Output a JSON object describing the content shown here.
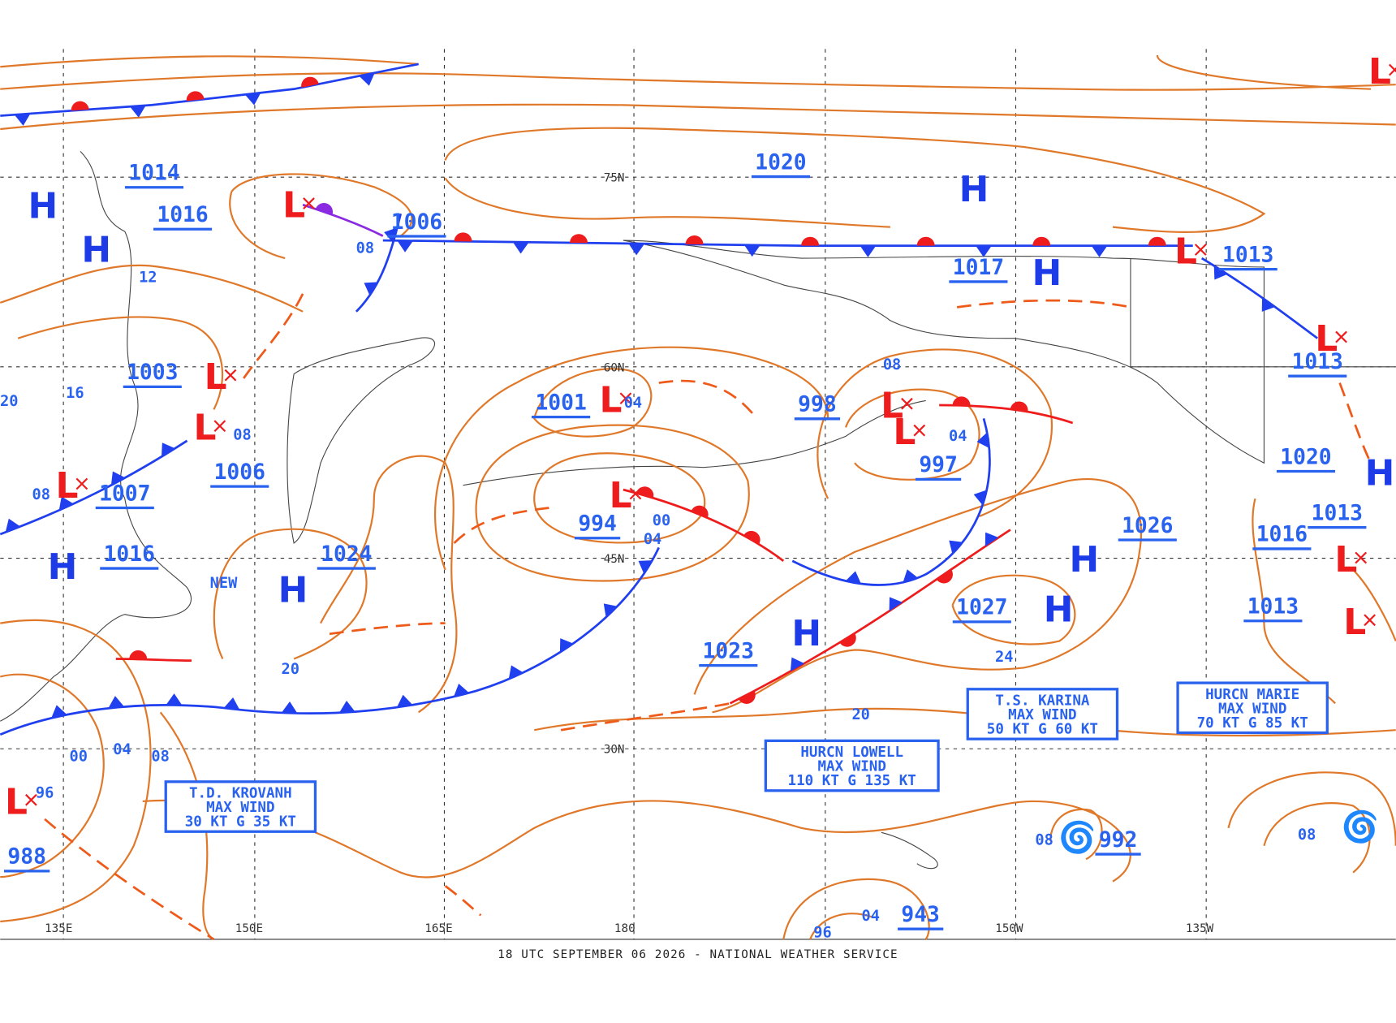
{
  "footer": "18 UTC SEPTEMBER 06 2026 - NATIONAL WEATHER SERVICE",
  "latitude_labels": [
    "75N",
    "60N",
    "45N",
    "30N"
  ],
  "longitude_labels": [
    "135E",
    "150E",
    "165E",
    "180",
    "150W",
    "135W"
  ],
  "pressure_centers": [
    1014,
    1016,
    1006,
    1020,
    1017,
    1013,
    1013,
    1003,
    1001,
    998,
    997,
    1006,
    1007,
    994,
    1020,
    1026,
    1016,
    1024,
    1016,
    1013,
    1027,
    1013,
    1023,
    988,
    992,
    943
  ],
  "highs": [
    "H",
    "H",
    "H",
    "H",
    "H",
    "H",
    "H",
    "H",
    "H",
    "H"
  ],
  "lows": [
    "L",
    "L",
    "L",
    "L",
    "L",
    "L",
    "L",
    "L",
    "L",
    "L",
    "L",
    "L",
    "L",
    "L"
  ],
  "isobar_labels": [
    "08",
    "04",
    "04",
    "08",
    "08",
    "08",
    "12",
    "16",
    "20",
    "00",
    "04",
    "20",
    "24",
    "20",
    "00",
    "04",
    "08",
    "96",
    "08",
    "08",
    "04",
    "96"
  ],
  "storms": [
    {
      "lines": [
        "T.D. KROVANH",
        "MAX WIND",
        "30 KT G 35 KT"
      ]
    },
    {
      "lines": [
        "HURCN LOWELL",
        "MAX WIND",
        "110 KT G 135 KT"
      ]
    },
    {
      "lines": [
        "T.S. KARINA",
        "MAX WIND",
        "50 KT G 60 KT"
      ]
    },
    {
      "lines": [
        "HURCN MARIE",
        "MAX WIND",
        "70 KT G 85 KT"
      ]
    }
  ],
  "new_label": "NEW"
}
